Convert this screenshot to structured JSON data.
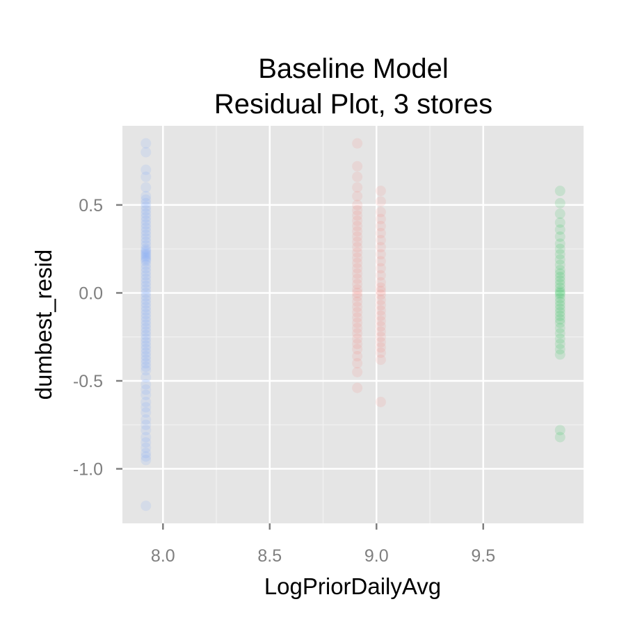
{
  "chart_data": {
    "type": "scatter",
    "title": [
      "Baseline Model",
      "Residual Plot, 3 stores"
    ],
    "xlabel": "LogPriorDailyAvg",
    "ylabel": "dumbest_resid",
    "xlim": [
      7.81,
      9.97
    ],
    "ylim": [
      -1.31,
      0.95
    ],
    "x_ticks": [
      8.0,
      8.5,
      9.0,
      9.5
    ],
    "x_tick_labels": [
      "8.0",
      "8.5",
      "9.0",
      "9.5"
    ],
    "y_ticks": [
      0.5,
      0.0,
      -0.5,
      -1.0
    ],
    "y_tick_labels": [
      "0.5",
      "0.0",
      "-0.5",
      "-1.0"
    ],
    "grid": true,
    "legend": "none",
    "colors": {
      "panel_bg": "#e5e5e5",
      "grid_major": "#ffffff",
      "grid_minor": "#f2f2f2",
      "tick": "#7f7f7f"
    },
    "series": [
      {
        "color": "#619cff",
        "x": 7.92,
        "values": [
          0.85,
          0.8,
          0.7,
          0.66,
          0.6,
          0.55,
          0.53,
          0.51,
          0.49,
          0.47,
          0.45,
          0.43,
          0.41,
          0.39,
          0.37,
          0.35,
          0.33,
          0.31,
          0.29,
          0.27,
          0.25,
          0.24,
          0.23,
          0.22,
          0.21,
          0.2,
          0.19,
          0.18,
          0.16,
          0.14,
          0.12,
          0.1,
          0.08,
          0.06,
          0.04,
          0.02,
          0.0,
          -0.02,
          -0.04,
          -0.06,
          -0.08,
          -0.1,
          -0.12,
          -0.14,
          -0.16,
          -0.18,
          -0.2,
          -0.22,
          -0.24,
          -0.26,
          -0.28,
          -0.3,
          -0.32,
          -0.34,
          -0.36,
          -0.38,
          -0.4,
          -0.42,
          -0.44,
          -0.48,
          -0.52,
          -0.55,
          -0.58,
          -0.62,
          -0.65,
          -0.68,
          -0.72,
          -0.75,
          -0.78,
          -0.82,
          -0.85,
          -0.88,
          -0.91,
          -0.93,
          -0.95,
          -1.21
        ]
      },
      {
        "color": "#f8766d",
        "x": 8.91,
        "values": [
          0.85,
          0.72,
          0.66,
          0.6,
          0.55,
          0.5,
          0.47,
          0.44,
          0.41,
          0.38,
          0.35,
          0.32,
          0.29,
          0.26,
          0.23,
          0.2,
          0.17,
          0.14,
          0.11,
          0.08,
          0.05,
          0.02,
          0.0,
          -0.02,
          -0.05,
          -0.08,
          -0.11,
          -0.14,
          -0.17,
          -0.2,
          -0.23,
          -0.26,
          -0.29,
          -0.32,
          -0.36,
          -0.4,
          -0.45,
          -0.54
        ]
      },
      {
        "color": "#f8766d",
        "x": 9.02,
        "values": [
          0.58,
          0.52,
          0.46,
          0.42,
          0.38,
          0.34,
          0.3,
          0.26,
          0.22,
          0.18,
          0.14,
          0.1,
          0.06,
          0.03,
          0.01,
          -0.01,
          -0.04,
          -0.07,
          -0.1,
          -0.13,
          -0.16,
          -0.19,
          -0.22,
          -0.25,
          -0.28,
          -0.31,
          -0.34,
          -0.38,
          -0.62
        ]
      },
      {
        "color": "#00ba38",
        "x": 9.86,
        "values": [
          0.58,
          0.51,
          0.45,
          0.4,
          0.36,
          0.32,
          0.28,
          0.25,
          0.22,
          0.19,
          0.16,
          0.13,
          0.11,
          0.09,
          0.07,
          0.05,
          0.03,
          0.01,
          0.0,
          -0.01,
          -0.03,
          -0.05,
          -0.07,
          -0.09,
          -0.11,
          -0.13,
          -0.15,
          -0.17,
          -0.2,
          -0.23,
          -0.26,
          -0.29,
          -0.32,
          -0.35,
          -0.78,
          -0.82
        ]
      }
    ]
  }
}
